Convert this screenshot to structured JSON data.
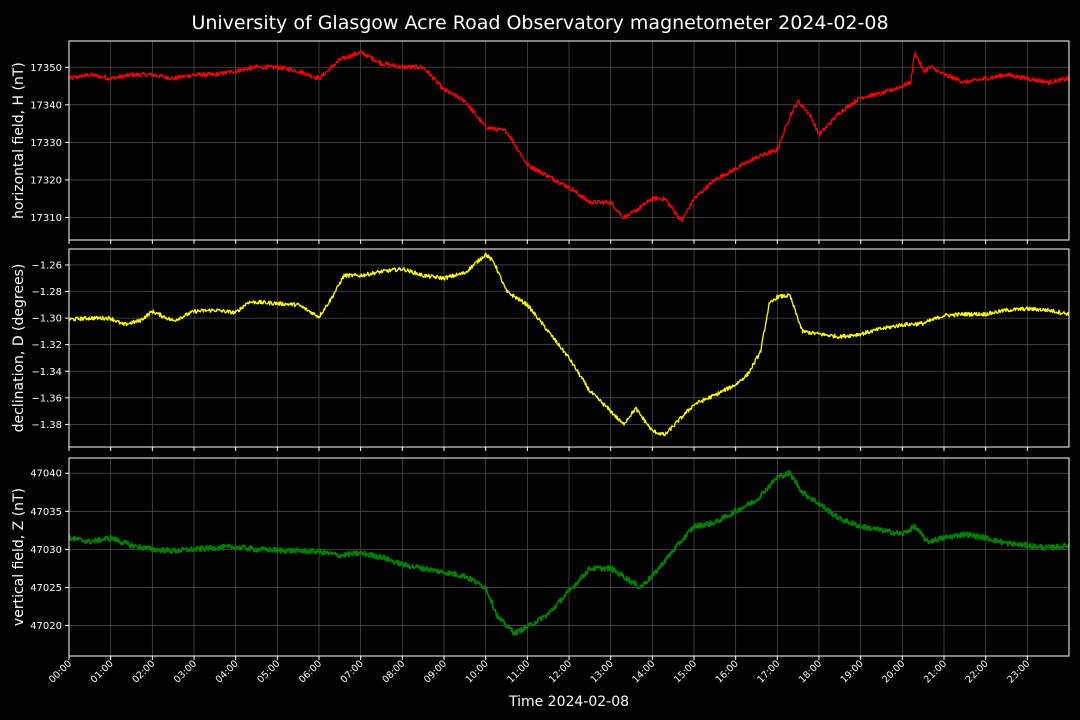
{
  "chart_data": {
    "type": "line",
    "title": "University of Glasgow Acre Road Observatory magnetometer 2024-02-08",
    "xlabel": "Time 2024-02-08",
    "x_ticks": [
      "00:00",
      "01:00",
      "02:00",
      "03:00",
      "04:00",
      "05:00",
      "06:00",
      "07:00",
      "08:00",
      "09:00",
      "10:00",
      "11:00",
      "12:00",
      "13:00",
      "14:00",
      "15:00",
      "16:00",
      "17:00",
      "18:00",
      "19:00",
      "20:00",
      "21:00",
      "22:00",
      "23:00"
    ],
    "xlim_hours": [
      0,
      24
    ],
    "grid": true,
    "background": "#000000",
    "panels": [
      {
        "ylabel": "horizontal field, H (nT)",
        "color": "#ff0000",
        "ylim": [
          17304,
          17357
        ],
        "yticks": [
          17310,
          17320,
          17330,
          17340,
          17350
        ],
        "ytick_labels": [
          "17310",
          "17320",
          "17330",
          "17340",
          "17350"
        ],
        "noise": 0.6,
        "x_hours": [
          0,
          0.5,
          1,
          1.5,
          2,
          2.5,
          3,
          3.5,
          4,
          4.5,
          5,
          5.5,
          6,
          6.5,
          7,
          7.5,
          8,
          8.5,
          9,
          9.5,
          10,
          10.5,
          11,
          11.5,
          12,
          12.5,
          13,
          13.3,
          13.5,
          14,
          14.3,
          14.5,
          14.7,
          15,
          15.5,
          16,
          16.5,
          17,
          17.3,
          17.5,
          17.8,
          18,
          18.5,
          19,
          19.5,
          20,
          20.2,
          20.3,
          20.5,
          20.7,
          21,
          21.5,
          22,
          22.5,
          23,
          23.5,
          24
        ],
        "values": [
          17347,
          17348,
          17347,
          17348,
          17348,
          17347,
          17348,
          17348,
          17349,
          17350,
          17350,
          17349,
          17347,
          17352,
          17354,
          17351,
          17350,
          17350,
          17344,
          17341,
          17334,
          17333,
          17324,
          17321,
          17318,
          17314,
          17314,
          17310,
          17311,
          17315,
          17315,
          17312,
          17309,
          17315,
          17320,
          17323,
          17326,
          17328,
          17337,
          17341,
          17337,
          17332,
          17338,
          17342,
          17343,
          17345,
          17346,
          17354,
          17349,
          17350,
          17348,
          17346,
          17347,
          17348,
          17347,
          17346,
          17347
        ]
      },
      {
        "ylabel": "declination, D (degrees)",
        "color": "#ffff00",
        "ylim": [
          -1.397,
          -1.248
        ],
        "yticks": [
          -1.38,
          -1.36,
          -1.34,
          -1.32,
          -1.3,
          -1.28,
          -1.26
        ],
        "ytick_labels": [
          "−1.38",
          "−1.36",
          "−1.34",
          "−1.32",
          "−1.30",
          "−1.28",
          "−1.26"
        ],
        "noise": 0.0015,
        "x_hours": [
          0,
          0.5,
          1,
          1.3,
          1.7,
          2,
          2.5,
          3,
          3.5,
          4,
          4.3,
          4.5,
          5,
          5.5,
          6,
          6.3,
          6.6,
          7,
          7.5,
          8,
          8.5,
          9,
          9.5,
          10,
          10.2,
          10.5,
          11,
          11.5,
          12,
          12.5,
          13,
          13.3,
          13.6,
          14,
          14.3,
          14.6,
          15,
          15.5,
          16,
          16.3,
          16.6,
          16.8,
          17,
          17.3,
          17.6,
          18,
          18.5,
          19,
          19.5,
          20,
          20.5,
          21,
          21.5,
          22,
          22.5,
          23,
          23.5,
          24
        ],
        "values": [
          -1.301,
          -1.3,
          -1.3,
          -1.305,
          -1.302,
          -1.295,
          -1.302,
          -1.295,
          -1.294,
          -1.296,
          -1.288,
          -1.288,
          -1.289,
          -1.29,
          -1.299,
          -1.285,
          -1.268,
          -1.268,
          -1.265,
          -1.263,
          -1.268,
          -1.27,
          -1.266,
          -1.252,
          -1.258,
          -1.28,
          -1.29,
          -1.31,
          -1.33,
          -1.355,
          -1.37,
          -1.38,
          -1.368,
          -1.385,
          -1.388,
          -1.378,
          -1.365,
          -1.358,
          -1.35,
          -1.342,
          -1.325,
          -1.29,
          -1.284,
          -1.283,
          -1.31,
          -1.312,
          -1.314,
          -1.312,
          -1.308,
          -1.305,
          -1.304,
          -1.298,
          -1.297,
          -1.297,
          -1.294,
          -1.293,
          -1.294,
          -1.297
        ]
      },
      {
        "ylabel": "vertical field, Z (nT)",
        "color": "#008000",
        "ylim": [
          47016,
          47042
        ],
        "yticks": [
          47020,
          47025,
          47030,
          47035,
          47040
        ],
        "ytick_labels": [
          "47020",
          "47025",
          "47030",
          "47035",
          "47040"
        ],
        "noise": 0.35,
        "x_hours": [
          0,
          0.5,
          1,
          1.5,
          2,
          2.5,
          3,
          3.5,
          4,
          4.5,
          5,
          5.5,
          6,
          6.5,
          7,
          7.5,
          8,
          8.5,
          9,
          9.5,
          10,
          10.3,
          10.7,
          11,
          11.5,
          12,
          12.5,
          13,
          13.3,
          13.7,
          14,
          14.3,
          14.6,
          15,
          15.5,
          16,
          16.5,
          17,
          17.3,
          17.6,
          18,
          18.5,
          19,
          19.5,
          20,
          20.3,
          20.6,
          21,
          21.5,
          22,
          22.5,
          23,
          23.5,
          24
        ],
        "values": [
          47031.5,
          47031,
          47031.5,
          47030.5,
          47030,
          47029.8,
          47030,
          47030.2,
          47030.3,
          47030,
          47029.9,
          47029.8,
          47029.7,
          47029.2,
          47029.5,
          47029,
          47028,
          47027.5,
          47027,
          47026.5,
          47025,
          47021,
          47019,
          47019.8,
          47021.5,
          47024.5,
          47027.5,
          47027.5,
          47026.5,
          47025,
          47026.5,
          47028.5,
          47030.5,
          47033,
          47033.5,
          47035,
          47036.5,
          47039.5,
          47040,
          47037.5,
          47036,
          47034,
          47033,
          47032.5,
          47032,
          47033,
          47031,
          47031.5,
          47032,
          47031.5,
          47030.8,
          47030.5,
          47030.2,
          47030.5
        ]
      }
    ]
  }
}
